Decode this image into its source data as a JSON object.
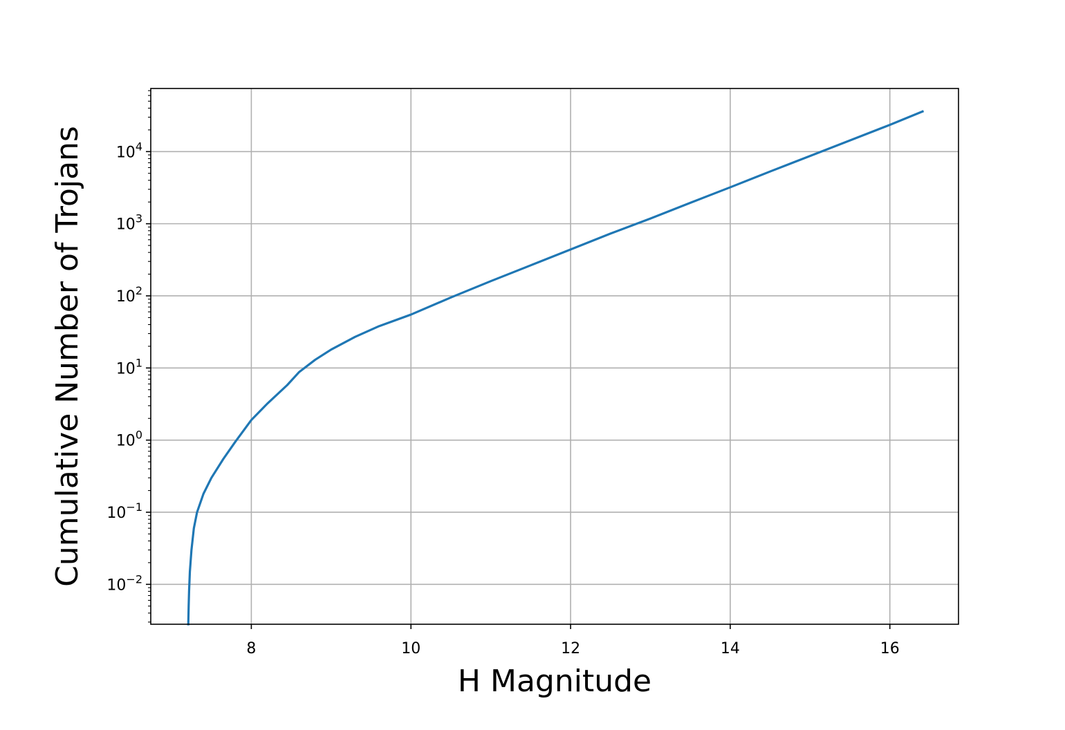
{
  "chart_data": {
    "type": "line",
    "title": "",
    "xlabel": "H Magnitude",
    "ylabel": "Cumulative Number of Trojans",
    "xscale": "linear",
    "yscale": "log",
    "xlim": [
      6.74,
      16.86
    ],
    "ylim": [
      0.0028,
      75000
    ],
    "grid": true,
    "legend": "none",
    "x_ticks": [
      8,
      10,
      12,
      14,
      16
    ],
    "y_ticks": [
      {
        "value": 0.01,
        "base": "10",
        "exp": "−2"
      },
      {
        "value": 0.1,
        "base": "10",
        "exp": "−1"
      },
      {
        "value": 1,
        "base": "10",
        "exp": "0"
      },
      {
        "value": 10,
        "base": "10",
        "exp": "1"
      },
      {
        "value": 100,
        "base": "10",
        "exp": "2"
      },
      {
        "value": 1000,
        "base": "10",
        "exp": "3"
      },
      {
        "value": 10000,
        "base": "10",
        "exp": "4"
      }
    ],
    "series": [
      {
        "color": "#1f77b4",
        "x": [
          7.21,
          7.215,
          7.22,
          7.23,
          7.25,
          7.28,
          7.32,
          7.4,
          7.5,
          7.65,
          7.8,
          8.0,
          8.2,
          8.45,
          8.6,
          8.8,
          9.0,
          9.3,
          9.6,
          10.0,
          10.5,
          11.0,
          11.5,
          12.0,
          12.5,
          13.0,
          13.5,
          14.0,
          14.5,
          15.0,
          15.5,
          16.0,
          16.41
        ],
        "y": [
          0.0028,
          0.005,
          0.008,
          0.015,
          0.03,
          0.06,
          0.1,
          0.18,
          0.3,
          0.55,
          0.95,
          1.9,
          3.2,
          5.8,
          8.8,
          13,
          18,
          27,
          38,
          55,
          95,
          160,
          265,
          440,
          730,
          1180,
          1950,
          3200,
          5300,
          8700,
          14300,
          23500,
          36000
        ]
      }
    ]
  }
}
